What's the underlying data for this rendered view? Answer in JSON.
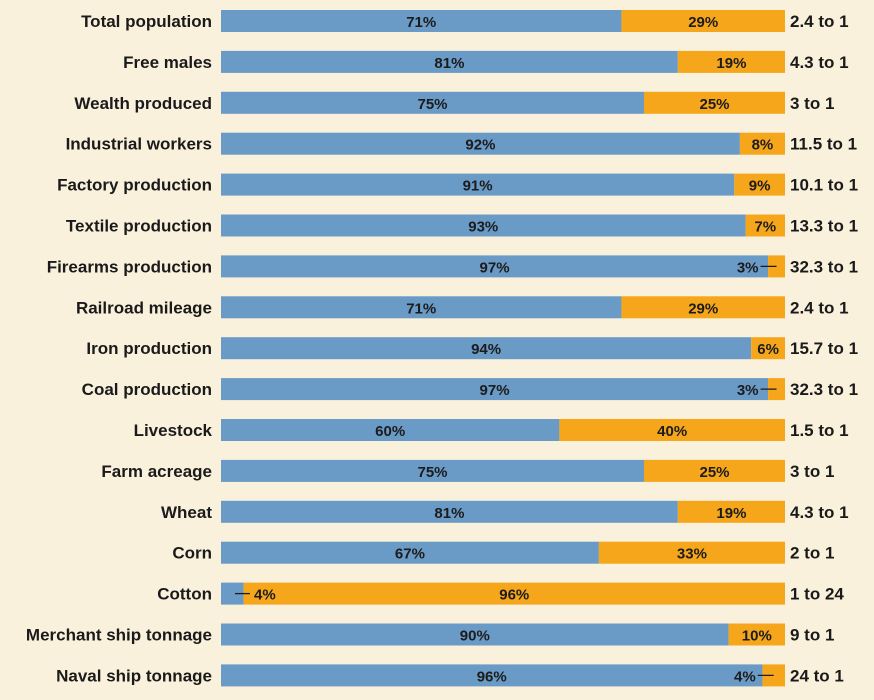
{
  "chart_data": {
    "type": "bar",
    "stacked": true,
    "orientation": "horizontal",
    "colors": {
      "first": "#6a9ac6",
      "second": "#f6a61b",
      "background": "#f9f1dc"
    },
    "categories": [
      "Total population",
      "Free males",
      "Wealth produced",
      "Industrial workers",
      "Factory production",
      "Textile production",
      "Firearms production",
      "Railroad mileage",
      "Iron production",
      "Coal production",
      "Livestock",
      "Farm acreage",
      "Wheat",
      "Corn",
      "Cotton",
      "Merchant ship tonnage",
      "Naval ship tonnage"
    ],
    "series": [
      {
        "values": [
          71,
          81,
          75,
          92,
          91,
          93,
          97,
          71,
          94,
          97,
          60,
          75,
          81,
          67,
          4,
          90,
          96
        ]
      },
      {
        "values": [
          29,
          19,
          25,
          8,
          9,
          7,
          3,
          29,
          6,
          3,
          40,
          25,
          19,
          33,
          96,
          10,
          4
        ]
      }
    ],
    "ratios": [
      "2.4 to 1",
      "4.3 to 1",
      "3 to 1",
      "11.5 to 1",
      "10.1 to 1",
      "13.3 to 1",
      "32.3 to 1",
      "2.4 to 1",
      "15.7 to 1",
      "32.3 to 1",
      "1.5 to 1",
      "3 to 1",
      "4.3 to 1",
      "2 to 1",
      "1 to 24",
      "9 to 1",
      "24 to 1"
    ]
  }
}
